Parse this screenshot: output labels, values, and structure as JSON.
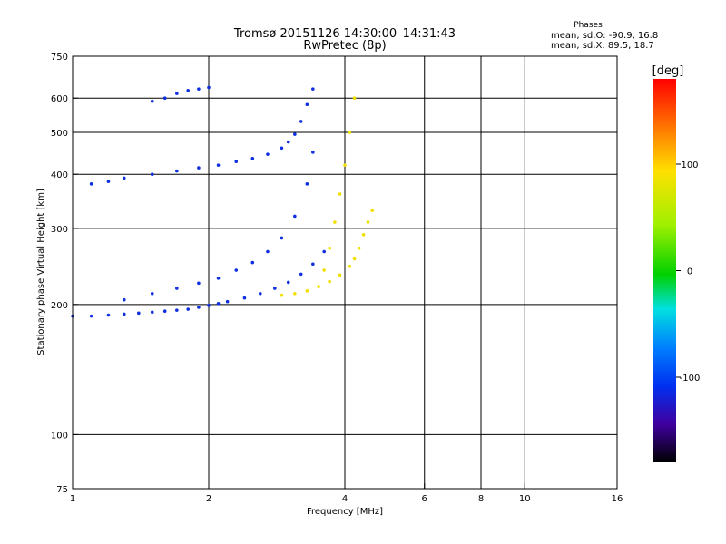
{
  "chart_data": {
    "type": "scatter",
    "title": "Tromsø 20151126 14:30:00–14:31:43",
    "subtitle": "RwPretec (8p)",
    "phases": {
      "title": "Phases",
      "line_o": "mean, sd,O: -90.9, 16.8",
      "line_x": "mean, sd,X:  89.5, 18.7"
    },
    "xlabel": "Frequency [MHz]",
    "ylabel": "Stationary phase Virtual Height [km]",
    "xscale": "log",
    "yscale": "log",
    "xlim": [
      1,
      16
    ],
    "ylim": [
      75,
      750
    ],
    "grid": true,
    "xticks": [
      1,
      2,
      4,
      6,
      8,
      10,
      16
    ],
    "xtick_labels": [
      "1",
      "2",
      "4",
      "6",
      "8",
      "10",
      "16"
    ],
    "xgrid": [
      2,
      4,
      6,
      8,
      10
    ],
    "yticks": [
      75,
      100,
      200,
      300,
      400,
      500,
      600,
      750
    ],
    "ytick_labels": [
      "75",
      "100",
      "200",
      "300",
      "400",
      "500",
      "600",
      "750"
    ],
    "ygrid": [
      100,
      200,
      300,
      400,
      500,
      600
    ],
    "colorbar": {
      "label": "[deg]",
      "range": [
        -180,
        180
      ],
      "ticks": [
        100,
        0,
        -100
      ],
      "tick_labels": [
        "100",
        "0",
        "-100"
      ]
    },
    "series": [
      {
        "name": "O-mode",
        "mean_phase": -90.9,
        "color": "#1030e0",
        "traces": [
          {
            "x": [
              1.0,
              1.1,
              1.2,
              1.3,
              1.4,
              1.5,
              1.6,
              1.7,
              1.8,
              1.9,
              2.0,
              2.1,
              2.2,
              2.4,
              2.6,
              2.8,
              3.0,
              3.2,
              3.4,
              3.6
            ],
            "y": [
              188,
              188,
              189,
              190,
              191,
              192,
              193,
              194,
              195,
              197,
              199,
              201,
              203,
              207,
              212,
              218,
              225,
              235,
              248,
              265
            ]
          },
          {
            "x": [
              1.1,
              1.2,
              1.3,
              1.5,
              1.7,
              1.9,
              2.1,
              2.3,
              2.5,
              2.7,
              2.9,
              3.0,
              3.1,
              3.2,
              3.3,
              3.4
            ],
            "y": [
              380,
              385,
              392,
              400,
              407,
              414,
              420,
              428,
              435,
              445,
              460,
              475,
              495,
              530,
              580,
              630
            ]
          },
          {
            "x": [
              1.5,
              1.6,
              1.7,
              1.8,
              1.9,
              2.0
            ],
            "y": [
              590,
              600,
              615,
              625,
              630,
              635
            ]
          },
          {
            "x": [
              1.3,
              1.5,
              1.7,
              1.9,
              2.1,
              2.3,
              2.5,
              2.7,
              2.9,
              3.1,
              3.3,
              3.4
            ],
            "y": [
              205,
              212,
              218,
              224,
              230,
              240,
              250,
              265,
              285,
              320,
              380,
              450
            ]
          }
        ]
      },
      {
        "name": "X-mode",
        "mean_phase": 89.5,
        "color": "#f0e000",
        "traces": [
          {
            "x": [
              2.9,
              3.1,
              3.3,
              3.5,
              3.7,
              3.9,
              4.1,
              4.2,
              4.3,
              4.4,
              4.5,
              4.6
            ],
            "y": [
              210,
              212,
              215,
              220,
              226,
              234,
              245,
              255,
              270,
              290,
              310,
              330
            ]
          },
          {
            "x": [
              3.6,
              3.7,
              3.8,
              3.9,
              4.0,
              4.1,
              4.2
            ],
            "y": [
              240,
              270,
              310,
              360,
              420,
              500,
              600
            ]
          }
        ]
      }
    ]
  }
}
